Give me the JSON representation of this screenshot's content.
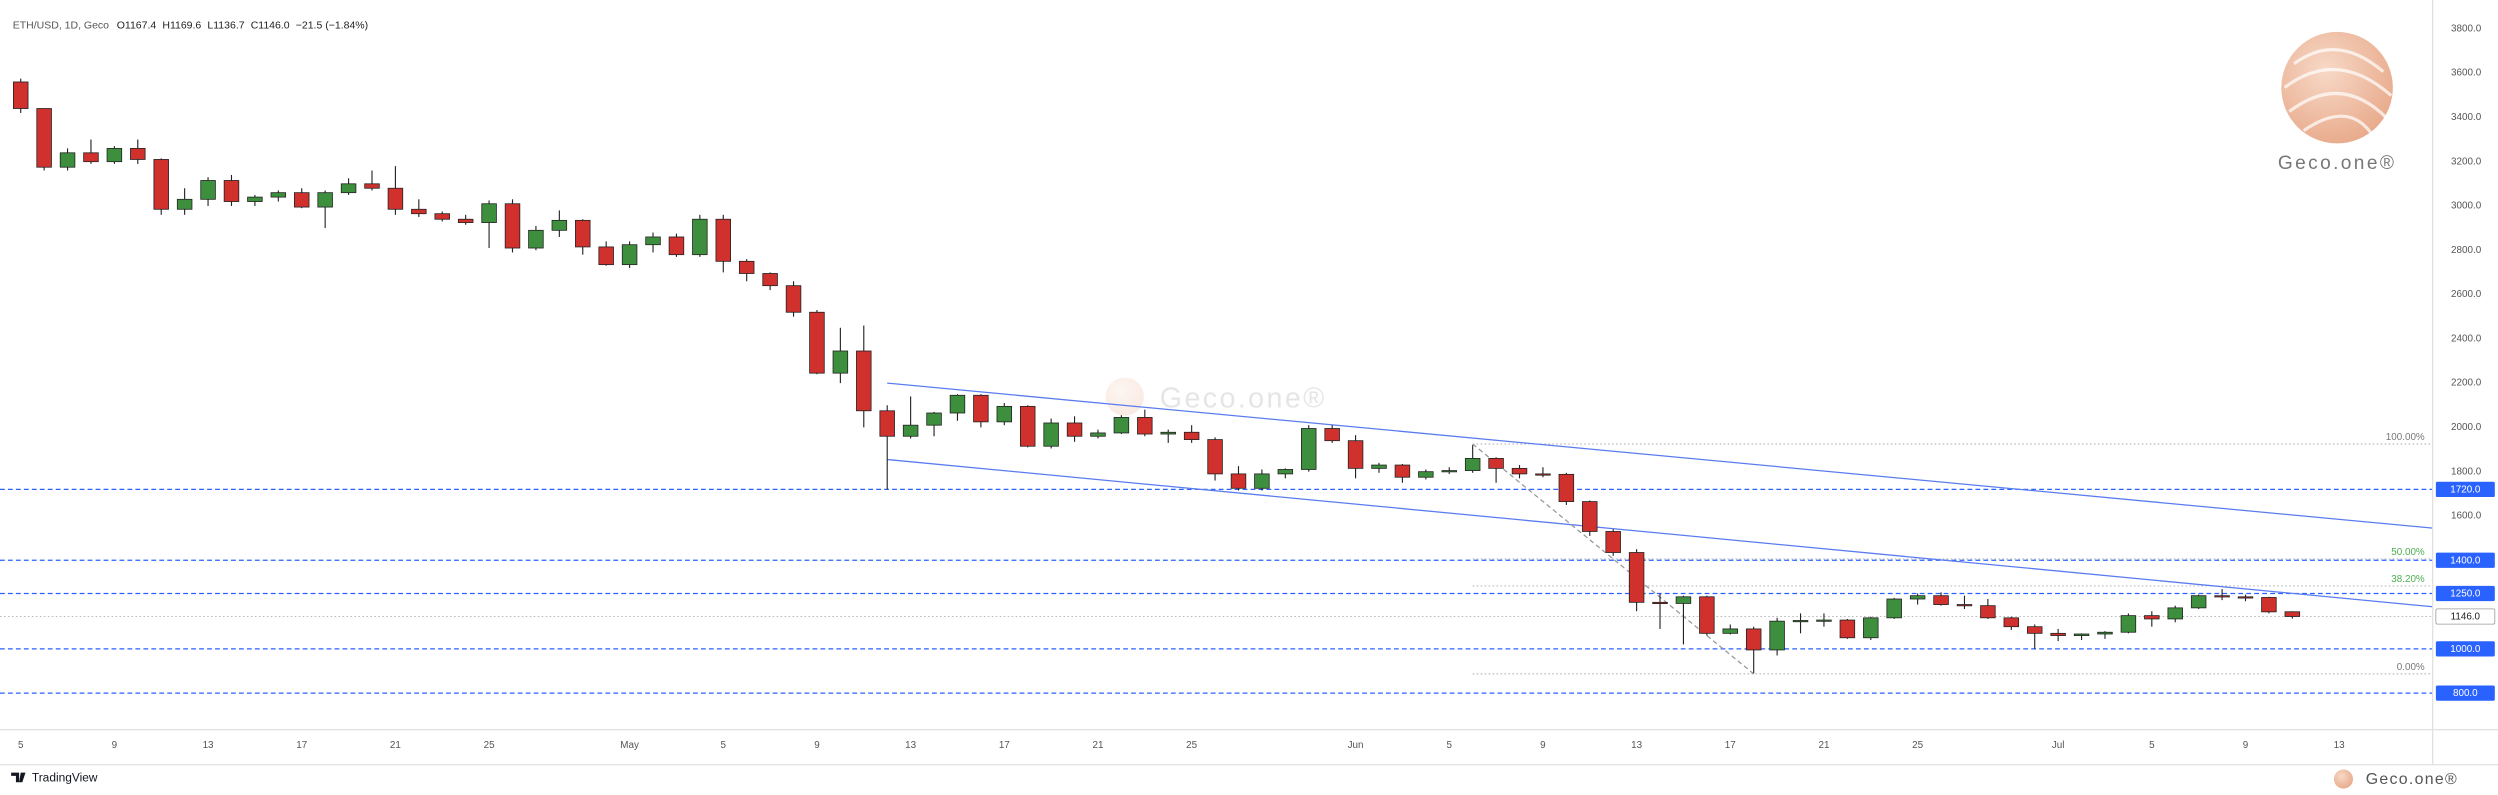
{
  "header": {
    "symbol": "ETH/USD, 1D, Geco",
    "items": [
      {
        "key": "O",
        "text": "1167.4"
      },
      {
        "key": "H",
        "text": "1169.6"
      },
      {
        "key": "L",
        "text": "1136.7"
      },
      {
        "key": "C",
        "text": "1146.0"
      }
    ],
    "change": "−21.5 (−1.84%)"
  },
  "footer": {
    "platform": "TradingView",
    "watermark": "Geco.one®"
  },
  "chart_data": {
    "type": "candlestick",
    "categories": [
      "5",
      null,
      null,
      null,
      "9",
      null,
      null,
      null,
      "13",
      null,
      null,
      null,
      "17",
      null,
      null,
      null,
      "21",
      null,
      null,
      null,
      "25",
      null,
      null,
      null,
      null,
      null,
      "May",
      null,
      null,
      null,
      "5",
      null,
      null,
      null,
      "9",
      null,
      null,
      null,
      "13",
      null,
      null,
      null,
      "17",
      null,
      null,
      null,
      "21",
      null,
      null,
      null,
      "25",
      null,
      null,
      null,
      null,
      null,
      null,
      "Jun",
      null,
      null,
      null,
      "5",
      null,
      null,
      null,
      "9",
      null,
      null,
      null,
      "13",
      null,
      null,
      null,
      "17",
      null,
      null,
      null,
      "21",
      null,
      null,
      null,
      "25",
      null,
      null,
      null,
      null,
      null,
      "Jul",
      null,
      null,
      null,
      "5",
      null,
      null,
      null,
      "9",
      null,
      null,
      null,
      "13"
    ],
    "open": [
      3560,
      3440,
      3175,
      3240,
      3200,
      3260,
      3210,
      2985,
      3030,
      3115,
      3020,
      3040,
      3060,
      2995,
      3060,
      3100,
      3080,
      2985,
      2965,
      2940,
      2925,
      3010,
      2810,
      2890,
      2935,
      2815,
      2735,
      2825,
      2860,
      2780,
      2940,
      2750,
      2695,
      2640,
      2520,
      2245,
      2345,
      2075,
      1960,
      2010,
      2065,
      2145,
      2025,
      2095,
      1915,
      2020,
      1960,
      1975,
      2045,
      1970,
      1978,
      1945,
      1790,
      1725,
      1790,
      1810,
      1995,
      1940,
      1815,
      1830,
      1775,
      1800,
      1805,
      1860,
      1815,
      1790,
      1788,
      1665,
      1530,
      1435,
      1210,
      1205,
      1235,
      1070,
      1090,
      995,
      1125,
      1128,
      1130,
      1050,
      1140,
      1225,
      1240,
      1200,
      1195,
      1140,
      1100,
      1070,
      1060,
      1067,
      1075,
      1150,
      1135,
      1185,
      1240,
      1235,
      1232,
      1167.4,
      null,
      null
    ],
    "high": [
      3575,
      3440,
      3260,
      3300,
      3270,
      3300,
      3215,
      3080,
      3130,
      3140,
      3050,
      3070,
      3080,
      3070,
      3125,
      3160,
      3180,
      3030,
      2975,
      2960,
      3025,
      3030,
      2910,
      2980,
      2940,
      2840,
      2840,
      2880,
      2875,
      2960,
      2960,
      2760,
      2700,
      2660,
      2530,
      2450,
      2460,
      2100,
      2140,
      2070,
      2150,
      2150,
      2110,
      2100,
      2040,
      2050,
      1990,
      2055,
      2080,
      1990,
      2010,
      1955,
      1825,
      1810,
      1815,
      2010,
      2010,
      1965,
      1840,
      1835,
      1810,
      1820,
      1920,
      1865,
      1830,
      1820,
      1795,
      1670,
      1540,
      1450,
      1250,
      1240,
      1240,
      1110,
      1100,
      1140,
      1160,
      1160,
      1135,
      1145,
      1230,
      1250,
      1255,
      1240,
      1225,
      1145,
      1110,
      1090,
      1070,
      1080,
      1160,
      1170,
      1195,
      1245,
      1270,
      1245,
      1235,
      1169.6,
      null,
      null
    ],
    "low": [
      3420,
      3160,
      3160,
      3190,
      3190,
      3190,
      2960,
      2960,
      3000,
      3000,
      3000,
      3020,
      2990,
      2900,
      3050,
      3070,
      2960,
      2950,
      2930,
      2915,
      2810,
      2790,
      2800,
      2860,
      2780,
      2730,
      2720,
      2790,
      2770,
      2770,
      2700,
      2660,
      2620,
      2500,
      2240,
      2200,
      2000,
      1720,
      1950,
      1960,
      2030,
      2000,
      2010,
      1910,
      1905,
      1935,
      1950,
      1970,
      1960,
      1930,
      1930,
      1760,
      1715,
      1715,
      1770,
      1800,
      1930,
      1770,
      1795,
      1750,
      1765,
      1790,
      1795,
      1750,
      1770,
      1775,
      1650,
      1510,
      1420,
      1170,
      1090,
      1020,
      1060,
      1065,
      890,
      970,
      1070,
      1100,
      1045,
      1040,
      1135,
      1200,
      1195,
      1180,
      1135,
      1085,
      1000,
      1035,
      1040,
      1045,
      1070,
      1100,
      1120,
      1180,
      1220,
      1215,
      1160,
      1136.7,
      null,
      null
    ],
    "close": [
      3440,
      3175,
      3240,
      3200,
      3260,
      3210,
      2985,
      3030,
      3115,
      3020,
      3040,
      3060,
      2995,
      3060,
      3100,
      3080,
      2985,
      2965,
      2940,
      2925,
      3010,
      2810,
      2890,
      2935,
      2815,
      2735,
      2825,
      2860,
      2780,
      2940,
      2750,
      2695,
      2640,
      2520,
      2245,
      2345,
      2075,
      1960,
      2010,
      2065,
      2145,
      2025,
      2095,
      1915,
      2020,
      1960,
      1975,
      2045,
      1970,
      1978,
      1945,
      1790,
      1725,
      1790,
      1810,
      1995,
      1940,
      1815,
      1830,
      1775,
      1800,
      1805,
      1860,
      1815,
      1790,
      1788,
      1665,
      1530,
      1435,
      1210,
      1205,
      1235,
      1070,
      1090,
      995,
      1125,
      1128,
      1130,
      1050,
      1140,
      1225,
      1240,
      1200,
      1195,
      1140,
      1100,
      1070,
      1060,
      1067,
      1075,
      1150,
      1135,
      1185,
      1240,
      1235,
      1232,
      1167,
      1146.0,
      null,
      null
    ],
    "up_color": "#3d8f3d",
    "down_color": "#d0312d",
    "ylim": [
      3930,
      635
    ],
    "yticks": [
      {
        "value": 3800,
        "label": "3800.0"
      },
      {
        "value": 3600,
        "label": "3600.0"
      },
      {
        "value": 3400,
        "label": "3400.0"
      },
      {
        "value": 3200,
        "label": "3200.0"
      },
      {
        "value": 3000,
        "label": "3000.0"
      },
      {
        "value": 2800,
        "label": "2800.0"
      },
      {
        "value": 2600,
        "label": "2600.0"
      },
      {
        "value": 2400,
        "label": "2400.0"
      },
      {
        "value": 2200,
        "label": "2200.0"
      },
      {
        "value": 2000,
        "label": "2000.0"
      },
      {
        "value": 1800,
        "label": "1800.0"
      },
      {
        "value": 1600,
        "label": "1600.0"
      }
    ],
    "grid": false,
    "levels": [
      {
        "value": 1720,
        "label": "1720.0"
      },
      {
        "value": 1400,
        "label": "1400.0"
      },
      {
        "value": 1250,
        "label": "1250.0"
      },
      {
        "value": 1000,
        "label": "1000.0"
      },
      {
        "value": 800,
        "label": "800.0"
      }
    ],
    "level_color": "#2962ff",
    "last_price": {
      "value": 1146,
      "label": "1146.0"
    },
    "fib": [
      {
        "ratio": 100,
        "label": "100.00%",
        "price": 1925,
        "color": "#777"
      },
      {
        "ratio": 50,
        "label": "50.00%",
        "price": 1406,
        "color": "#4caf50"
      },
      {
        "ratio": 38.2,
        "label": "38.20%",
        "price": 1284,
        "color": "#4caf50"
      },
      {
        "ratio": 0,
        "label": "0.00%",
        "price": 887,
        "color": "#777"
      }
    ],
    "trendlines": [
      {
        "x": [
          37,
          103
        ],
        "y": [
          2200,
          1545
        ],
        "color": "#5b7cf0",
        "dash": false
      },
      {
        "x": [
          37,
          103
        ],
        "y": [
          1855,
          1190
        ],
        "color": "#5b7cf0",
        "dash": false
      },
      {
        "x": [
          62,
          74
        ],
        "y": [
          1925,
          887
        ],
        "color": "#999",
        "dash": true
      }
    ]
  }
}
